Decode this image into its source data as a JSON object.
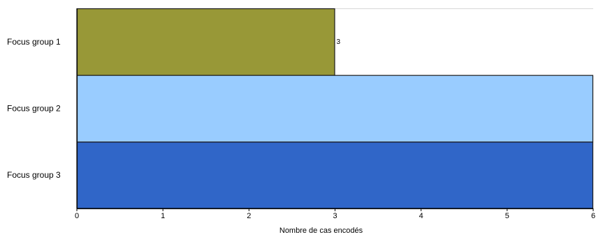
{
  "chart_data": {
    "type": "bar",
    "orientation": "horizontal",
    "categories": [
      "Focus group 1",
      "Focus group 2",
      "Focus group 3"
    ],
    "values": [
      3,
      6,
      6
    ],
    "data_labels": [
      "3",
      "",
      ""
    ],
    "colors": [
      "#989837",
      "#99ccff",
      "#3066c8"
    ],
    "xlabel": "Nombre de cas encodés",
    "ylabel": "",
    "title": "",
    "xlim": [
      0,
      6
    ],
    "xticks": [
      0,
      1,
      2,
      3,
      4,
      5,
      6
    ],
    "tick_labels": [
      "0",
      "1",
      "2",
      "3",
      "4",
      "5",
      "6"
    ],
    "grid": false,
    "legend": "none"
  }
}
